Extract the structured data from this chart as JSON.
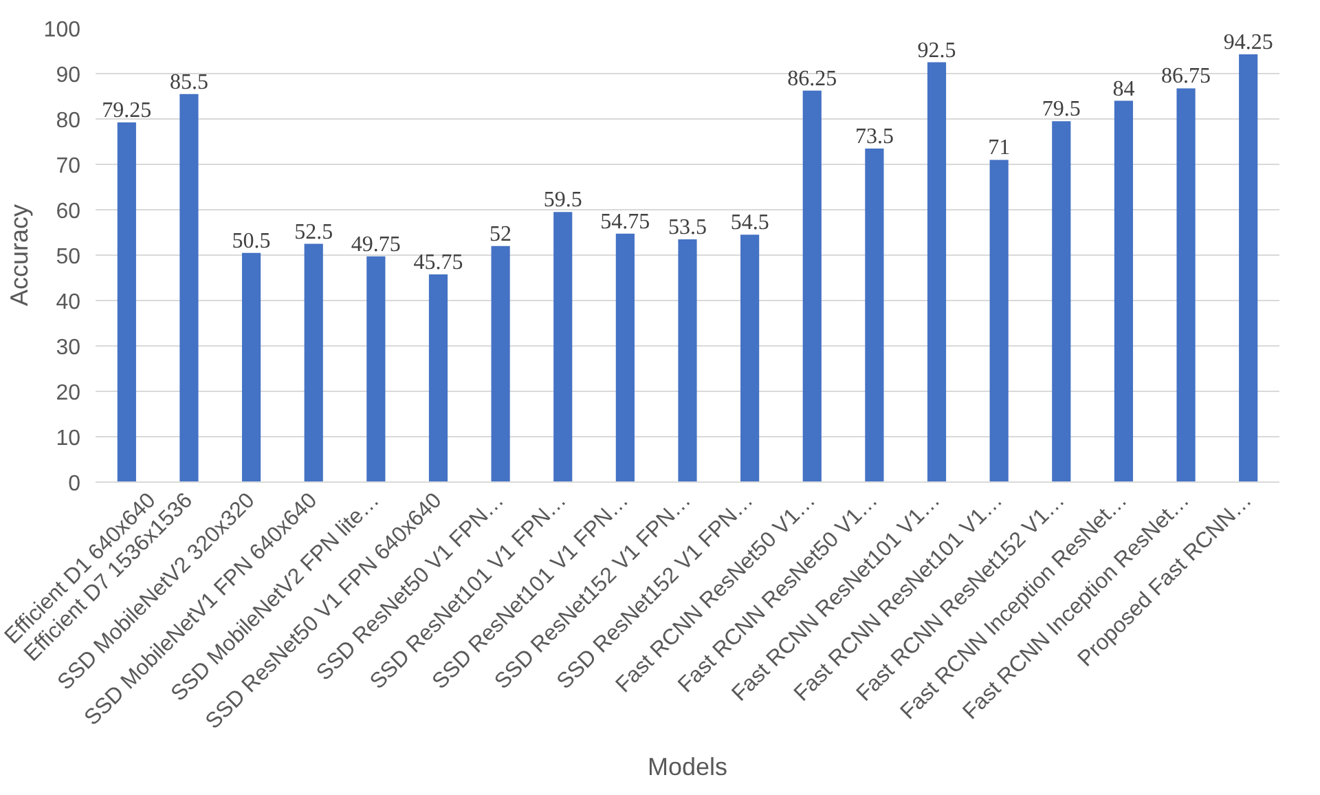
{
  "chart_data": {
    "type": "bar",
    "xlabel": "Models",
    "ylabel": "Accuracy",
    "categories": [
      "Efficient D1 640x640",
      "Efficient D7 1536x1536",
      "SSD MobileNetV2 320x320",
      "SSD MobileNetV1 FPN 640x640",
      "SSD MobileNetV2 FPN lite…",
      "SSD ResNet50 V1 FPN 640x640",
      "SSD ResNet50 V1 FPN…",
      "SSD ResNet101 V1 FPN…",
      "SSD ResNet101 V1 FPN…",
      "SSD ResNet152 V1 FPN…",
      "SSD ResNet152 V1 FPN…",
      "Fast RCNN ResNet50 V1…",
      "Fast RCNN ResNet50 V1…",
      "Fast RCNN ResNet101 V1…",
      "Fast RCNN ResNet101 V1…",
      "Fast RCNN ResNet152 V1…",
      "Fast RCNN Inception ResNet…",
      "Fast RCNN Inception ResNet…",
      "Proposed Fast RCNN…"
    ],
    "values": [
      79.25,
      85.5,
      50.5,
      52.5,
      49.75,
      45.75,
      52,
      59.5,
      54.75,
      53.5,
      54.5,
      86.25,
      73.5,
      92.5,
      71,
      79.5,
      84,
      86.75,
      94.25
    ],
    "color": "#4472c4",
    "ylim": [
      0,
      100
    ],
    "yticks": [
      0,
      10,
      20,
      30,
      40,
      50,
      60,
      70,
      80,
      90,
      100
    ],
    "grid": "y",
    "data_labels": true
  }
}
